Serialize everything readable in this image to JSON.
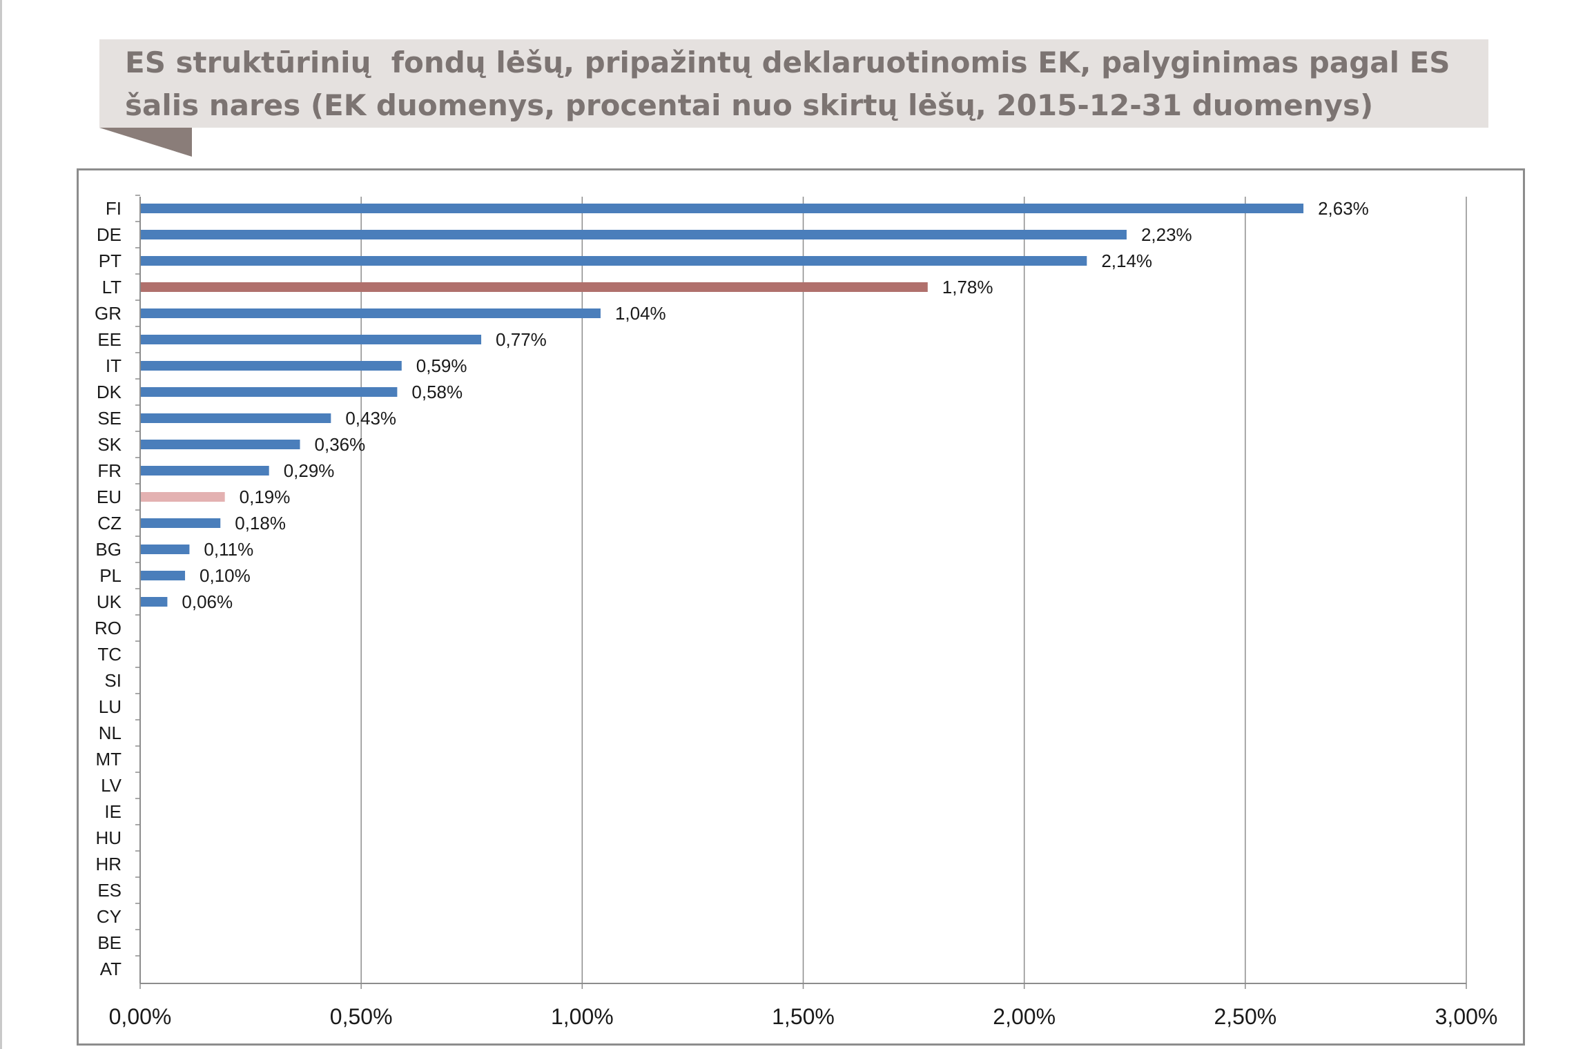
{
  "chart_data": {
    "type": "bar",
    "orientation": "horizontal",
    "title": "ES struktūrinių  fondų lėšų, pripažintų deklaruotinomis EK, palyginimas pagal ES šalis nares (EK duomenys, procentai nuo skirtų lėšų, 2015-12-31 duomenys)",
    "xlabel": "",
    "ylabel": "",
    "xlim": [
      0,
      3
    ],
    "x_ticks": [
      "0,00%",
      "0,50%",
      "1,00%",
      "1,50%",
      "2,00%",
      "2,50%",
      "3,00%"
    ],
    "grid": "vertical",
    "legend": "none",
    "categories": [
      "FI",
      "DE",
      "PT",
      "LT",
      "GR",
      "EE",
      "IT",
      "DK",
      "SE",
      "SK",
      "FR",
      "EU",
      "CZ",
      "BG",
      "PL",
      "UK",
      "RO",
      "TC",
      "SI",
      "LU",
      "NL",
      "MT",
      "LV",
      "IE",
      "HU",
      "HR",
      "ES",
      "CY",
      "BE",
      "AT"
    ],
    "values": [
      2.63,
      2.23,
      2.14,
      1.78,
      1.04,
      0.77,
      0.59,
      0.58,
      0.43,
      0.36,
      0.29,
      0.19,
      0.18,
      0.11,
      0.1,
      0.06,
      0,
      0,
      0,
      0,
      0,
      0,
      0,
      0,
      0,
      0,
      0,
      0,
      0,
      0
    ],
    "data_labels": [
      "2,63%",
      "2,23%",
      "2,14%",
      "1,78%",
      "1,04%",
      "0,77%",
      "0,59%",
      "0,58%",
      "0,43%",
      "0,36%",
      "0,29%",
      "0,19%",
      "0,18%",
      "0,11%",
      "0,10%",
      "0,06%",
      "",
      "",
      "",
      "",
      "",
      "",
      "",
      "",
      "",
      "",
      "",
      "",
      "",
      ""
    ],
    "colors": {
      "default": "#4a7ebb",
      "LT": "#b0706c",
      "EU": "#e3b1b1",
      "grid": "#8c8c8c",
      "axis": "#8c8c8c"
    }
  }
}
